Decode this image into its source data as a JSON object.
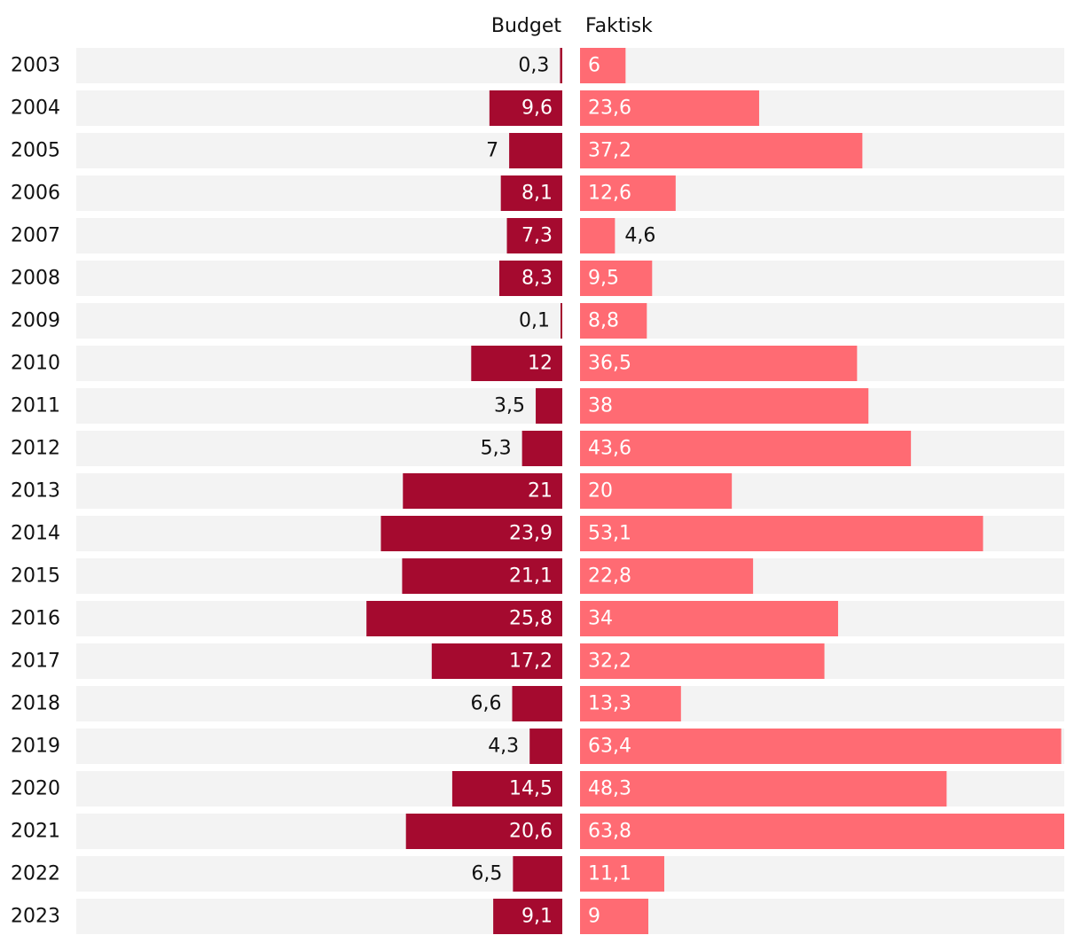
{
  "chart_data": {
    "type": "bar",
    "orientation": "horizontal",
    "layout": "diverging",
    "title": "",
    "xlabel": "",
    "ylabel": "",
    "categories": [
      "2003",
      "2004",
      "2005",
      "2006",
      "2007",
      "2008",
      "2009",
      "2010",
      "2011",
      "2012",
      "2013",
      "2014",
      "2015",
      "2016",
      "2017",
      "2018",
      "2019",
      "2020",
      "2021",
      "2022",
      "2023"
    ],
    "series": [
      {
        "name": "Budget",
        "color": "#a50a2f",
        "values": [
          0.3,
          9.6,
          7,
          8.1,
          7.3,
          8.3,
          0.1,
          12,
          3.5,
          5.3,
          21,
          23.9,
          21.1,
          25.8,
          17.2,
          6.6,
          4.3,
          14.5,
          20.6,
          6.5,
          9.1
        ],
        "labels": [
          "0,3",
          "9,6",
          "7",
          "8,1",
          "7,3",
          "8,3",
          "0,1",
          "12",
          "3,5",
          "5,3",
          "21",
          "23,9",
          "21,1",
          "25,8",
          "17,2",
          "6,6",
          "4,3",
          "14,5",
          "20,6",
          "6,5",
          "9,1"
        ]
      },
      {
        "name": "Faktisk",
        "color": "#ff6b73",
        "values": [
          6,
          23.6,
          37.2,
          12.6,
          4.6,
          9.5,
          8.8,
          36.5,
          38,
          43.6,
          20,
          53.1,
          22.8,
          34,
          32.2,
          13.3,
          63.4,
          48.3,
          63.8,
          11.1,
          9
        ],
        "labels": [
          "6",
          "23,6",
          "37,2",
          "12,6",
          "4,6",
          "9,5",
          "8,8",
          "36,5",
          "38",
          "43,6",
          "20",
          "53,1",
          "22,8",
          "34",
          "32,2",
          "13,3",
          "63,4",
          "48,3",
          "63,8",
          "11,1",
          "9"
        ]
      }
    ],
    "xlim": [
      0,
      63.8
    ],
    "track_color": "#f3f3f3",
    "grid": false,
    "legend": "top-center"
  }
}
